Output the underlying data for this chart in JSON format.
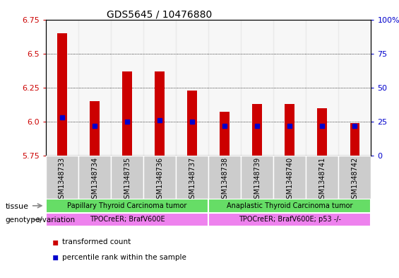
{
  "title": "GDS5645 / 10476880",
  "samples": [
    "GSM1348733",
    "GSM1348734",
    "GSM1348735",
    "GSM1348736",
    "GSM1348737",
    "GSM1348738",
    "GSM1348739",
    "GSM1348740",
    "GSM1348741",
    "GSM1348742"
  ],
  "transformed_count": [
    6.65,
    6.15,
    6.37,
    6.37,
    6.23,
    6.07,
    6.13,
    6.13,
    6.1,
    5.99
  ],
  "percentile_rank": [
    28,
    22,
    25,
    26,
    25,
    22,
    22,
    22,
    22,
    22
  ],
  "ylim": [
    5.75,
    6.75
  ],
  "ylim_right": [
    0,
    100
  ],
  "yticks_left": [
    5.75,
    6.0,
    6.25,
    6.5,
    6.75
  ],
  "yticks_right": [
    0,
    25,
    50,
    75,
    100
  ],
  "bar_color": "#cc0000",
  "dot_color": "#0000cc",
  "baseline": 5.75,
  "bar_width": 0.3,
  "tissue_groups": [
    {
      "label": "Papillary Thyroid Carcinoma tumor",
      "start": 0,
      "end": 5,
      "color": "#66dd66"
    },
    {
      "label": "Anaplastic Thyroid Carcinoma tumor",
      "start": 5,
      "end": 10,
      "color": "#66dd66"
    }
  ],
  "genotype_groups": [
    {
      "label": "TPOCreER; BrafV600E",
      "start": 0,
      "end": 5,
      "color": "#ee82ee"
    },
    {
      "label": "TPOCreER; BrafV600E; p53 -/-",
      "start": 5,
      "end": 10,
      "color": "#ee82ee"
    }
  ],
  "tissue_label": "tissue",
  "genotype_label": "genotype/variation",
  "legend_items": [
    {
      "label": "transformed count",
      "color": "#cc0000"
    },
    {
      "label": "percentile rank within the sample",
      "color": "#0000cc"
    }
  ],
  "xtick_bg_color": "#cccccc",
  "xtick_border_color": "#999999"
}
